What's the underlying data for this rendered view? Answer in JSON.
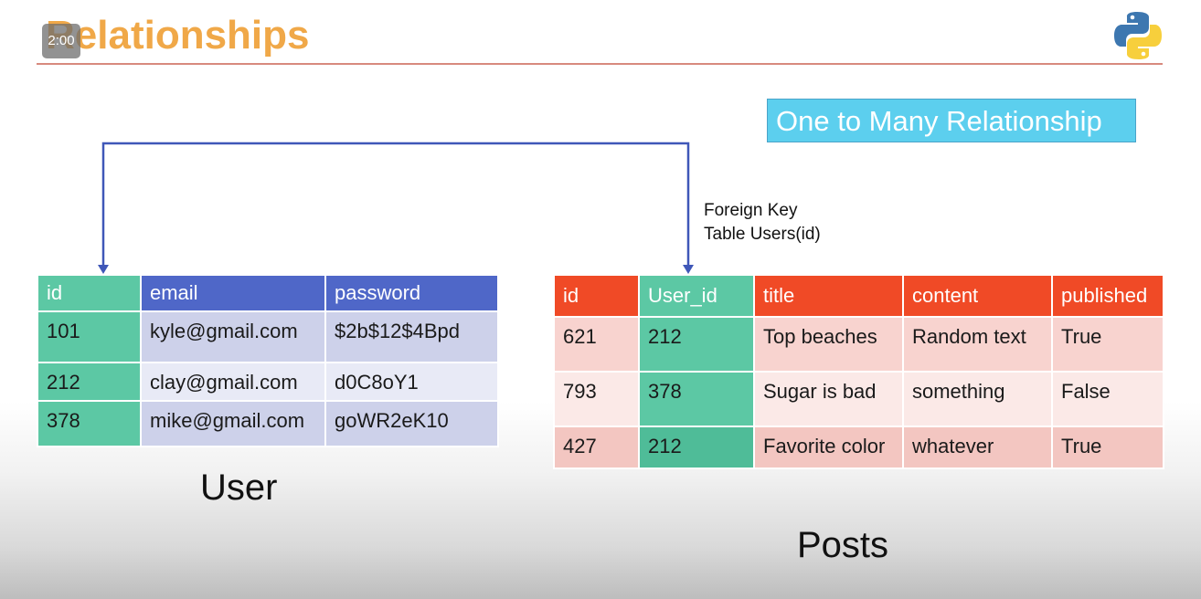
{
  "slide": {
    "title": "Relationships",
    "timer": "2:00",
    "logo_icon": "python-logo-icon",
    "relationship_label": "One to Many Relationship",
    "foreign_key_lines": [
      "Foreign Key",
      "Table Users(id)"
    ]
  },
  "user_table": {
    "caption": "User",
    "columns": [
      "id",
      "email",
      "password"
    ],
    "rows": [
      [
        "101",
        "kyle@gmail.com",
        "$2b$12$4Bpd"
      ],
      [
        "212",
        "clay@gmail.com",
        "d0C8oY1"
      ],
      [
        "378",
        "mike@gmail.com",
        "goWR2eK10"
      ]
    ]
  },
  "posts_table": {
    "caption": "Posts",
    "columns": [
      "id",
      "User_id",
      "title",
      "content",
      "published"
    ],
    "rows": [
      [
        "621",
        "212",
        "Top beaches",
        "Random text",
        "True"
      ],
      [
        "793",
        "378",
        "Sugar is bad",
        "something",
        "False"
      ],
      [
        "427",
        "212",
        "Favorite color",
        "whatever",
        "True"
      ]
    ]
  },
  "colors": {
    "title": "#f0a848",
    "key_column": "#5cc8a4",
    "user_header": "#4f67c8",
    "posts_header": "#f04a26",
    "relationship_box": "#5ccfee",
    "connector": "#3f57b8"
  }
}
